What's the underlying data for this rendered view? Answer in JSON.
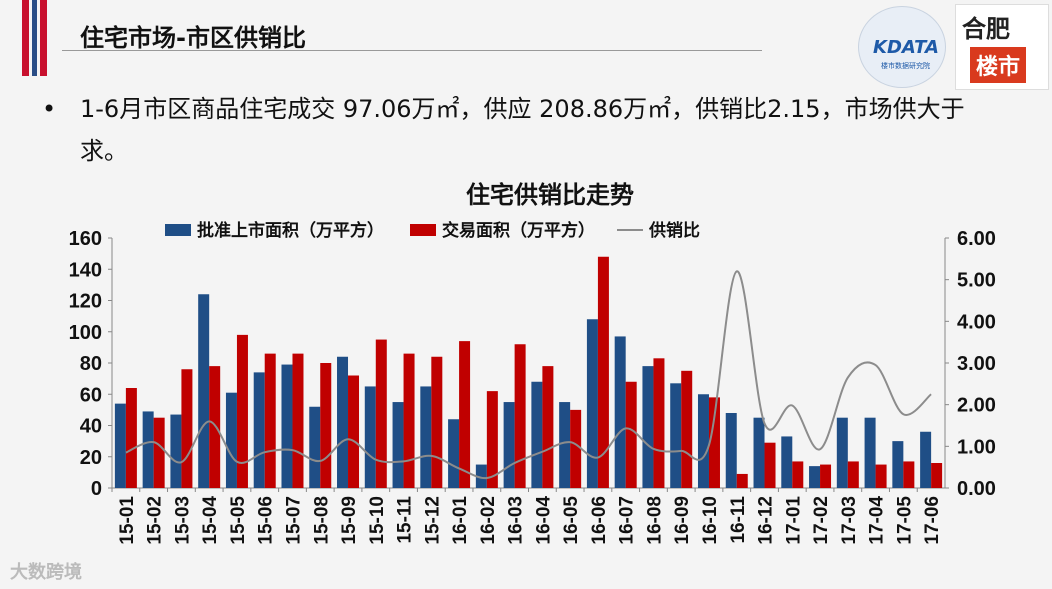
{
  "slide": {
    "title": "住宅市场-市区供销比",
    "bullet": "1-6月市区商品住宅成交 97.06万㎡，供应 208.86万㎡，供销比2.15，市场供大于求。",
    "watermark": "大数跨境"
  },
  "logos": {
    "kdata_name": "KDATA",
    "kdata_sub": "楼市数据研究院",
    "hefei_top": "合肥",
    "hefei_bottom": "楼市"
  },
  "colors": {
    "supply": "#1f4e86",
    "sales": "#c00000",
    "ratio": "#8c8c8c"
  },
  "chart_data": {
    "type": "bar",
    "title": "住宅供销比走势",
    "categories": [
      "15-01",
      "15-02",
      "15-03",
      "15-04",
      "15-05",
      "15-06",
      "15-07",
      "15-08",
      "15-09",
      "15-10",
      "15-11",
      "15-12",
      "16-01",
      "16-02",
      "16-03",
      "16-04",
      "16-05",
      "16-06",
      "16-07",
      "16-08",
      "16-09",
      "16-10",
      "16-11",
      "16-12",
      "17-01",
      "17-02",
      "17-03",
      "17-04",
      "17-05",
      "17-06"
    ],
    "series": [
      {
        "name": "批准上市面积（万平方）",
        "type": "bar",
        "axis": "left",
        "values": [
          54,
          49,
          47,
          124,
          61,
          74,
          79,
          52,
          84,
          65,
          55,
          65,
          44,
          15,
          55,
          68,
          55,
          108,
          97,
          78,
          67,
          60,
          48,
          45,
          33,
          14,
          45,
          45,
          30,
          36
        ]
      },
      {
        "name": "交易面积（万平方）",
        "type": "bar",
        "axis": "left",
        "values": [
          64,
          45,
          76,
          78,
          98,
          86,
          86,
          80,
          72,
          95,
          86,
          84,
          94,
          62,
          92,
          78,
          50,
          148,
          68,
          83,
          75,
          58,
          9,
          29,
          17,
          15,
          17,
          15,
          17,
          16
        ]
      },
      {
        "name": "供销比",
        "type": "line",
        "axis": "right",
        "values": [
          0.85,
          1.1,
          0.62,
          1.6,
          0.63,
          0.86,
          0.91,
          0.65,
          1.17,
          0.68,
          0.64,
          0.77,
          0.47,
          0.24,
          0.6,
          0.87,
          1.1,
          0.73,
          1.43,
          0.94,
          0.89,
          1.03,
          5.2,
          1.55,
          1.98,
          0.93,
          2.65,
          2.95,
          1.77,
          2.25
        ]
      }
    ],
    "y_left": {
      "min": 0,
      "max": 160,
      "ticks": [
        "0",
        "20",
        "40",
        "60",
        "80",
        "100",
        "120",
        "140",
        "160"
      ]
    },
    "y_right": {
      "min": 0,
      "max": 6,
      "ticks": [
        "0.00",
        "1.00",
        "2.00",
        "3.00",
        "4.00",
        "5.00",
        "6.00"
      ]
    },
    "legend_position": "top"
  }
}
